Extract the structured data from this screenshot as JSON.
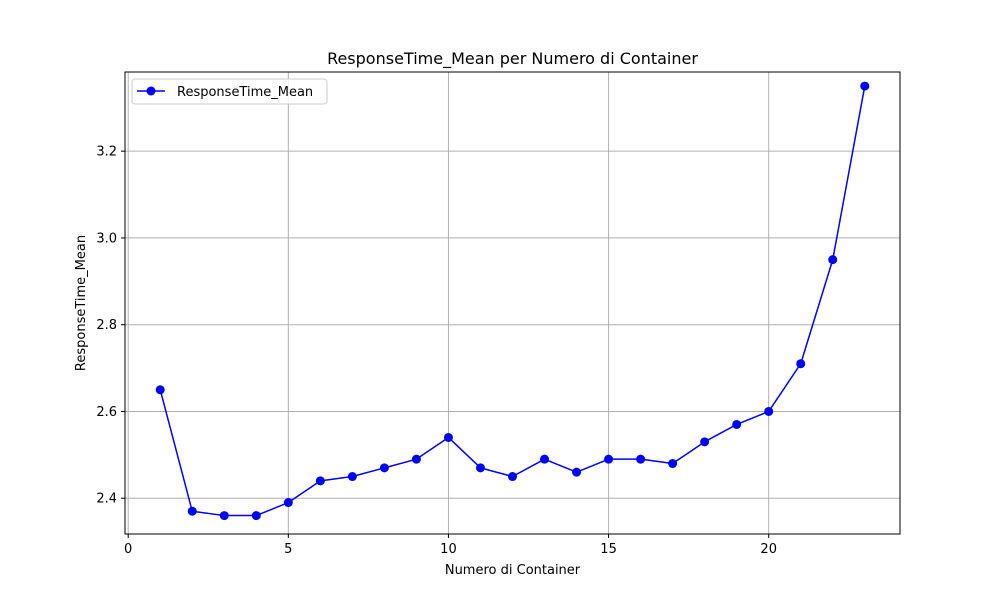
{
  "chart_data": {
    "type": "line",
    "title": "ResponseTime_Mean per Numero di Container",
    "xlabel": "Numero di Container",
    "ylabel": "ResponseTime_Mean",
    "xlim": [
      -0.1,
      24.1
    ],
    "ylim": [
      2.3175,
      3.3825
    ],
    "x_ticks": [
      0,
      5,
      10,
      15,
      20
    ],
    "y_ticks": [
      2.4,
      2.6,
      2.8,
      3.0,
      3.2
    ],
    "x_tick_labels": [
      "0",
      "5",
      "10",
      "15",
      "20"
    ],
    "y_tick_labels": [
      "2.4",
      "2.6",
      "2.8",
      "3.0",
      "3.2"
    ],
    "grid": true,
    "legend_position": "top-left",
    "series": [
      {
        "name": "ResponseTime_Mean",
        "color": "#0000ff",
        "marker": "circle",
        "x": [
          1,
          2,
          3,
          4,
          5,
          6,
          7,
          8,
          9,
          10,
          11,
          12,
          13,
          14,
          15,
          16,
          17,
          18,
          19,
          20,
          21,
          22,
          23
        ],
        "y": [
          2.65,
          2.37,
          2.36,
          2.36,
          2.39,
          2.44,
          2.45,
          2.47,
          2.49,
          2.54,
          2.47,
          2.45,
          2.49,
          2.46,
          2.49,
          2.49,
          2.48,
          2.53,
          2.57,
          2.6,
          2.71,
          2.95,
          3.35
        ]
      }
    ]
  }
}
